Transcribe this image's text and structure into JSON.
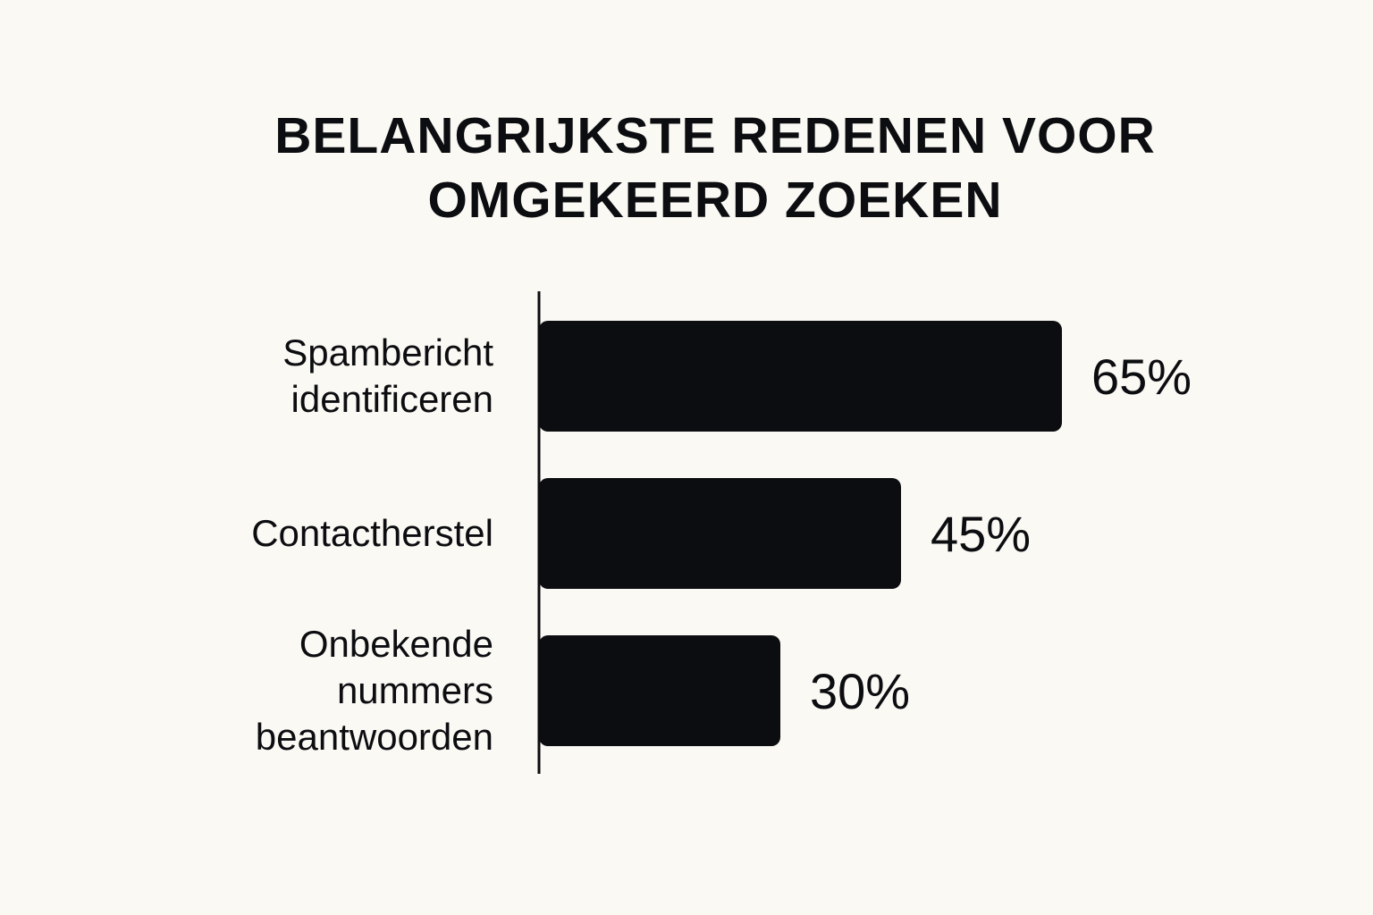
{
  "chart_data": {
    "type": "bar",
    "orientation": "horizontal",
    "title_lines": [
      "BELANGRIJKSTE REDENEN VOOR",
      "OMGEKEERD ZOEKEN"
    ],
    "categories": [
      [
        "Spambericht",
        "identificeren"
      ],
      [
        "Contactherstel"
      ],
      [
        "Onbekende",
        "nummers",
        "beantwoorden"
      ]
    ],
    "values": [
      65,
      45,
      30
    ],
    "value_labels": [
      "65%",
      "45%",
      "30%"
    ],
    "unit": "%",
    "grid": false,
    "legend": "none",
    "bar_color": "#0c0d10"
  }
}
